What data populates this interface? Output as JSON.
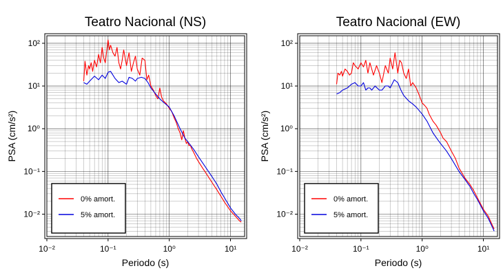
{
  "chart_data": [
    {
      "type": "line",
      "title": "Teatro Nacional (NS)",
      "xlabel": "Periodo (s)",
      "ylabel": "PSA (cm/s²)",
      "x_scale": "log",
      "y_scale": "log",
      "xlim": [
        0.01,
        17
      ],
      "ylim": [
        0.003,
        150
      ],
      "x_ticks": [
        {
          "value": 0.01,
          "label": "10⁻²"
        },
        {
          "value": 0.1,
          "label": "10⁻¹"
        },
        {
          "value": 1,
          "label": "10⁰"
        },
        {
          "value": 10,
          "label": "10¹"
        }
      ],
      "y_ticks": [
        {
          "value": 0.01,
          "label": "10⁻²"
        },
        {
          "value": 0.1,
          "label": "10⁻¹"
        },
        {
          "value": 1,
          "label": "10⁰"
        },
        {
          "value": 10,
          "label": "10¹"
        },
        {
          "value": 100,
          "label": "10²"
        }
      ],
      "grid": true,
      "legend_position": "bottom-left",
      "series": [
        {
          "name": "0% amort.",
          "color": "#ff0000",
          "x": [
            0.04,
            0.042,
            0.045,
            0.048,
            0.05,
            0.053,
            0.056,
            0.06,
            0.065,
            0.07,
            0.075,
            0.08,
            0.085,
            0.09,
            0.1,
            0.105,
            0.11,
            0.12,
            0.13,
            0.14,
            0.15,
            0.16,
            0.17,
            0.18,
            0.2,
            0.22,
            0.24,
            0.26,
            0.28,
            0.3,
            0.33,
            0.36,
            0.4,
            0.43,
            0.46,
            0.5,
            0.55,
            0.6,
            0.65,
            0.7,
            0.75,
            0.8,
            0.9,
            1.0,
            1.1,
            1.2,
            1.3,
            1.4,
            1.5,
            1.6,
            1.7,
            1.8,
            1.9,
            2.0,
            2.1,
            2.2,
            2.3,
            2.5,
            2.8,
            3.0,
            3.5,
            4.0,
            5.0,
            6.0,
            7.0,
            8.0,
            10.0,
            12.0,
            14.0,
            15.0
          ],
          "y": [
            13,
            38,
            18,
            30,
            25,
            35,
            22,
            40,
            28,
            55,
            35,
            80,
            45,
            35,
            120,
            70,
            90,
            60,
            50,
            80,
            35,
            25,
            40,
            70,
            30,
            60,
            22,
            35,
            50,
            25,
            18,
            45,
            40,
            14,
            18,
            10,
            8,
            6,
            5,
            9,
            5.5,
            4.5,
            3.8,
            3.0,
            2.5,
            1.8,
            1.4,
            1.0,
            0.8,
            0.55,
            0.9,
            0.6,
            0.45,
            0.5,
            0.4,
            0.42,
            0.35,
            0.28,
            0.2,
            0.17,
            0.12,
            0.09,
            0.055,
            0.037,
            0.026,
            0.019,
            0.012,
            0.009,
            0.007,
            0.0065
          ]
        },
        {
          "name": "5% amort.",
          "color": "#0000dd",
          "x": [
            0.04,
            0.045,
            0.05,
            0.06,
            0.07,
            0.08,
            0.09,
            0.1,
            0.11,
            0.12,
            0.13,
            0.15,
            0.17,
            0.2,
            0.22,
            0.25,
            0.28,
            0.3,
            0.35,
            0.4,
            0.45,
            0.5,
            0.6,
            0.7,
            0.8,
            1.0,
            1.2,
            1.5,
            1.8,
            2.0,
            2.5,
            3.0,
            4.0,
            5.0,
            6.0,
            7.0,
            8.0,
            10.0,
            12.0,
            14.0,
            15.0
          ],
          "y": [
            12,
            11,
            13,
            17,
            14,
            18,
            15,
            21,
            22,
            18,
            15,
            12,
            13,
            11,
            16,
            15,
            13,
            15,
            16,
            15,
            12,
            9,
            6.5,
            5,
            4.2,
            3.2,
            2.0,
            1.0,
            0.6,
            0.5,
            0.33,
            0.22,
            0.12,
            0.075,
            0.05,
            0.033,
            0.024,
            0.014,
            0.01,
            0.008,
            0.007
          ]
        }
      ]
    },
    {
      "type": "line",
      "title": "Teatro Nacional (EW)",
      "xlabel": "Periodo (s)",
      "ylabel": "PSA (cm/s²)",
      "x_scale": "log",
      "y_scale": "log",
      "xlim": [
        0.01,
        17
      ],
      "ylim": [
        0.003,
        150
      ],
      "x_ticks": [
        {
          "value": 0.01,
          "label": "10⁻²"
        },
        {
          "value": 0.1,
          "label": "10⁻¹"
        },
        {
          "value": 1,
          "label": "10⁰"
        },
        {
          "value": 10,
          "label": "10¹"
        }
      ],
      "y_ticks": [
        {
          "value": 0.01,
          "label": "10⁻²"
        },
        {
          "value": 0.1,
          "label": "10⁻¹"
        },
        {
          "value": 1,
          "label": "10⁰"
        },
        {
          "value": 10,
          "label": "10¹"
        },
        {
          "value": 100,
          "label": "10²"
        }
      ],
      "grid": true,
      "legend_position": "bottom-left",
      "series": [
        {
          "name": "0% amort.",
          "color": "#ff0000",
          "x": [
            0.04,
            0.042,
            0.045,
            0.048,
            0.05,
            0.055,
            0.06,
            0.065,
            0.07,
            0.075,
            0.08,
            0.09,
            0.1,
            0.11,
            0.12,
            0.13,
            0.14,
            0.15,
            0.16,
            0.18,
            0.2,
            0.22,
            0.25,
            0.28,
            0.3,
            0.33,
            0.36,
            0.4,
            0.43,
            0.46,
            0.5,
            0.55,
            0.6,
            0.65,
            0.7,
            0.8,
            0.9,
            1.0,
            1.1,
            1.2,
            1.3,
            1.5,
            1.7,
            2.0,
            2.2,
            2.5,
            3.0,
            3.5,
            4.0,
            5.0,
            6.0,
            7.0,
            8.0,
            10.0,
            12.0,
            14.0,
            15.0
          ],
          "y": [
            11,
            20,
            18,
            22,
            17,
            25,
            22,
            18,
            20,
            35,
            30,
            25,
            35,
            28,
            40,
            20,
            35,
            25,
            18,
            30,
            20,
            12,
            30,
            20,
            45,
            25,
            60,
            20,
            40,
            35,
            20,
            15,
            25,
            10,
            12,
            9,
            6,
            4.0,
            3.5,
            3.0,
            2.2,
            1.5,
            1.2,
            0.8,
            0.6,
            0.5,
            0.3,
            0.2,
            0.12,
            0.07,
            0.05,
            0.035,
            0.024,
            0.013,
            0.009,
            0.0055,
            0.0045
          ]
        },
        {
          "name": "5% amort.",
          "color": "#0000dd",
          "x": [
            0.04,
            0.045,
            0.05,
            0.06,
            0.07,
            0.08,
            0.09,
            0.1,
            0.11,
            0.12,
            0.13,
            0.14,
            0.15,
            0.17,
            0.2,
            0.22,
            0.25,
            0.28,
            0.3,
            0.35,
            0.4,
            0.45,
            0.5,
            0.6,
            0.7,
            0.8,
            1.0,
            1.2,
            1.5,
            1.8,
            2.0,
            2.5,
            3.0,
            4.0,
            5.0,
            6.0,
            7.0,
            8.0,
            10.0,
            12.0,
            14.0,
            15.0
          ],
          "y": [
            6.5,
            7,
            8,
            9,
            11,
            12,
            10,
            10,
            12,
            8,
            9,
            9,
            8,
            10,
            8,
            8,
            10,
            10,
            9,
            14,
            12,
            8,
            6,
            4.5,
            3.8,
            3.2,
            2.2,
            1.5,
            0.8,
            0.55,
            0.45,
            0.3,
            0.2,
            0.1,
            0.065,
            0.045,
            0.03,
            0.022,
            0.012,
            0.008,
            0.005,
            0.004
          ]
        }
      ]
    }
  ]
}
